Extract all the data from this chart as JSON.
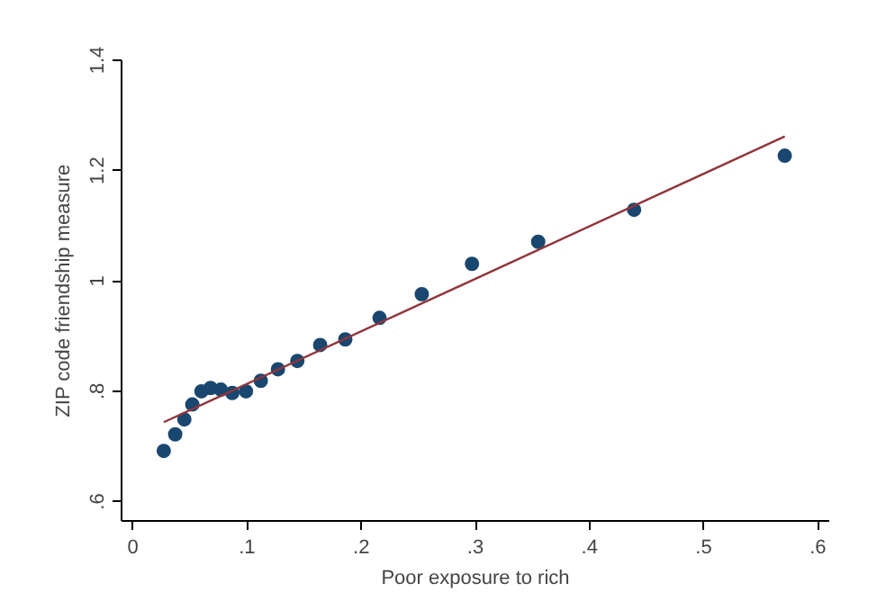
{
  "chart_data": {
    "type": "scatter",
    "xlabel": "Poor exposure to rich",
    "ylabel": "ZIP code friendship measure",
    "xlim": [
      -0.01,
      0.61
    ],
    "ylim": [
      0.565,
      1.4
    ],
    "xticks": [
      {
        "value": 0,
        "label": "0"
      },
      {
        "value": 0.1,
        "label": ".1"
      },
      {
        "value": 0.2,
        "label": ".2"
      },
      {
        "value": 0.3,
        "label": ".3"
      },
      {
        "value": 0.4,
        "label": ".4"
      },
      {
        "value": 0.5,
        "label": ".5"
      },
      {
        "value": 0.6,
        "label": ".6"
      }
    ],
    "yticks": [
      {
        "value": 0.6,
        "label": ".6"
      },
      {
        "value": 0.8,
        "label": ".8"
      },
      {
        "value": 1.0,
        "label": "1"
      },
      {
        "value": 1.2,
        "label": "1.2"
      },
      {
        "value": 1.4,
        "label": "1.4"
      }
    ],
    "grid": false,
    "series": [
      {
        "marker": "circle",
        "color": "#1a476f",
        "x": [
          0.027,
          0.037,
          0.045,
          0.052,
          0.06,
          0.068,
          0.077,
          0.087,
          0.099,
          0.112,
          0.127,
          0.144,
          0.164,
          0.186,
          0.216,
          0.253,
          0.297,
          0.355,
          0.439,
          0.571
        ],
        "values": [
          0.692,
          0.722,
          0.749,
          0.776,
          0.8,
          0.806,
          0.803,
          0.797,
          0.8,
          0.819,
          0.84,
          0.855,
          0.884,
          0.894,
          0.933,
          0.976,
          1.031,
          1.071,
          1.129,
          1.227
        ]
      },
      {
        "type": "line",
        "color": "#90353b",
        "line_style": "solid",
        "x": [
          0.027,
          0.571
        ],
        "values": [
          0.744,
          1.262
        ]
      }
    ]
  }
}
